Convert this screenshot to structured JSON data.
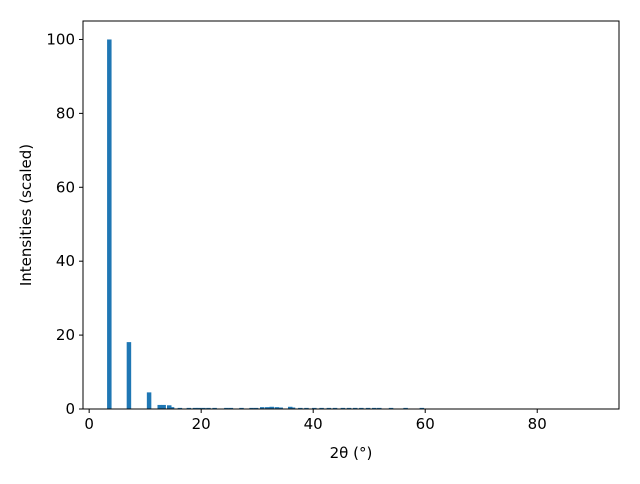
{
  "chart_data": {
    "type": "bar",
    "title": "",
    "xlabel": "2θ (°)",
    "ylabel": "Intensities (scaled)",
    "xlim": [
      -1.1,
      94.6
    ],
    "ylim": [
      0,
      105
    ],
    "xticks": [
      0,
      20,
      40,
      60,
      80
    ],
    "yticks": [
      0,
      20,
      40,
      60,
      80,
      100
    ],
    "grid": false,
    "bar_width": 0.8,
    "color": "#1f77b4",
    "x": [
      3.6,
      7.1,
      10.7,
      12.6,
      13.3,
      14.3,
      14.8,
      16.2,
      17.8,
      18.9,
      19.6,
      20.4,
      21.3,
      22.4,
      24.5,
      25.3,
      27.2,
      29.0,
      29.8,
      30.9,
      31.8,
      32.6,
      33.5,
      34.2,
      35.9,
      36.4,
      37.7,
      38.8,
      40.2,
      41.5,
      42.8,
      43.9,
      45.3,
      46.4,
      47.5,
      48.6,
      49.8,
      50.9,
      51.8,
      53.9,
      56.5,
      59.4
    ],
    "values": [
      100,
      18.1,
      4.5,
      1.1,
      1.1,
      1.0,
      0.5,
      0.3,
      0.3,
      0.3,
      0.3,
      0.3,
      0.3,
      0.3,
      0.3,
      0.3,
      0.3,
      0.3,
      0.3,
      0.5,
      0.5,
      0.6,
      0.5,
      0.4,
      0.6,
      0.4,
      0.3,
      0.3,
      0.3,
      0.3,
      0.3,
      0.3,
      0.3,
      0.3,
      0.3,
      0.3,
      0.3,
      0.3,
      0.3,
      0.3,
      0.3,
      0.3
    ]
  }
}
